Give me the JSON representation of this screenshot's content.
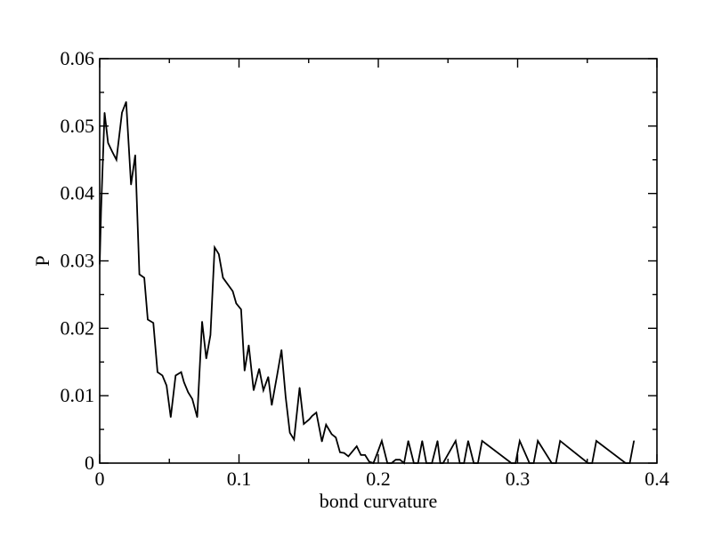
{
  "chart_data": {
    "type": "line",
    "title": "",
    "xlabel": "bond curvature",
    "ylabel": "P",
    "xlim": [
      0,
      0.4
    ],
    "ylim": [
      0,
      0.06
    ],
    "grid": false,
    "legend": "none",
    "x_ticks": [
      {
        "value": 0,
        "label": "0"
      },
      {
        "value": 0.1,
        "label": "0.1"
      },
      {
        "value": 0.2,
        "label": "0.2"
      },
      {
        "value": 0.3,
        "label": "0.3"
      },
      {
        "value": 0.4,
        "label": "0.4"
      }
    ],
    "y_ticks": [
      {
        "value": 0,
        "label": "0"
      },
      {
        "value": 0.01,
        "label": "0.01"
      },
      {
        "value": 0.02,
        "label": "0.02"
      },
      {
        "value": 0.03,
        "label": "0.03"
      },
      {
        "value": 0.04,
        "label": "0.04"
      },
      {
        "value": 0.05,
        "label": "0.05"
      },
      {
        "value": 0.06,
        "label": "0.06"
      }
    ],
    "series": [
      {
        "color": "#000000",
        "x": [
          0.0,
          0.001,
          0.0035,
          0.006,
          0.009,
          0.012,
          0.016,
          0.019,
          0.0225,
          0.0255,
          0.0285,
          0.032,
          0.0345,
          0.0385,
          0.0415,
          0.045,
          0.048,
          0.051,
          0.0545,
          0.0585,
          0.0605,
          0.0635,
          0.0665,
          0.07,
          0.0735,
          0.0765,
          0.0795,
          0.0825,
          0.0855,
          0.0885,
          0.0955,
          0.098,
          0.1015,
          0.104,
          0.107,
          0.1105,
          0.1145,
          0.1175,
          0.121,
          0.1235,
          0.1275,
          0.1305,
          0.1335,
          0.1365,
          0.1395,
          0.1435,
          0.1465,
          0.1505,
          0.1525,
          0.1555,
          0.1595,
          0.1625,
          0.1665,
          0.1695,
          0.1725,
          0.1755,
          0.1785,
          0.1845,
          0.1875,
          0.1905,
          0.1935,
          0.1965,
          0.1995,
          0.2025,
          0.2065,
          0.2095,
          0.2125,
          0.2155,
          0.2185,
          0.2215,
          0.2255,
          0.2285,
          0.2315,
          0.2345,
          0.2385,
          0.2425,
          0.2445,
          0.2465,
          0.2555,
          0.2585,
          0.2615,
          0.2645,
          0.2685,
          0.2715,
          0.2745,
          0.2955,
          0.2985,
          0.3015,
          0.3085,
          0.3115,
          0.3145,
          0.3245,
          0.3275,
          0.3305,
          0.3505,
          0.3535,
          0.3565,
          0.3775,
          0.3805,
          0.3835
        ],
        "y": [
          0.0295,
          0.0375,
          0.052,
          0.0475,
          0.0462,
          0.045,
          0.052,
          0.0536,
          0.0413,
          0.0457,
          0.028,
          0.0275,
          0.0213,
          0.0208,
          0.0135,
          0.013,
          0.0115,
          0.0068,
          0.013,
          0.0135,
          0.012,
          0.0105,
          0.0095,
          0.0068,
          0.021,
          0.0155,
          0.019,
          0.032,
          0.031,
          0.0275,
          0.0255,
          0.0237,
          0.0228,
          0.0137,
          0.0175,
          0.0108,
          0.014,
          0.0108,
          0.0128,
          0.0086,
          0.0132,
          0.0168,
          0.0098,
          0.0045,
          0.0035,
          0.0112,
          0.0058,
          0.0065,
          0.007,
          0.0075,
          0.0032,
          0.0057,
          0.0043,
          0.0038,
          0.0016,
          0.0015,
          0.001,
          0.0025,
          0.0012,
          0.0012,
          0.0002,
          0.0,
          0.0016,
          0.0033,
          0.0,
          0.0,
          0.0005,
          0.0005,
          0.0,
          0.0033,
          0.0,
          0.0,
          0.0033,
          0.0,
          0.0,
          0.0033,
          0.0,
          0.0,
          0.0033,
          0.0,
          0.0,
          0.0033,
          0.0,
          0.0,
          0.0033,
          0.0,
          0.0,
          0.0033,
          0.0,
          0.0,
          0.0033,
          0.0,
          0.0,
          0.0033,
          0.0,
          0.0,
          0.0033,
          0.0,
          0.0,
          0.0033
        ]
      }
    ]
  }
}
